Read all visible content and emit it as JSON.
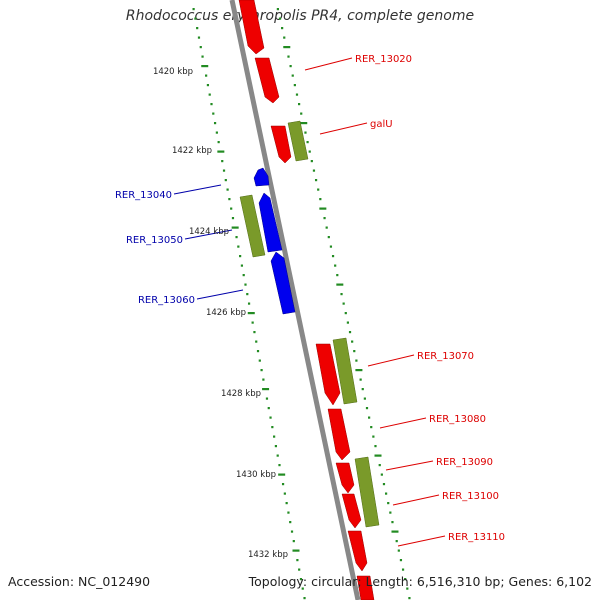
{
  "title": "Rhodococcus erythropolis PR4, complete genome",
  "footer": {
    "accession": "Accession: NC_012490",
    "summary": "Topology: circular; Length: 6,516,310 bp; Genes: 6,102"
  },
  "colors": {
    "forward_cds": "#ff0000",
    "reverse_cds": "#0000ff",
    "rna_or_other": "#6b8e23",
    "backbone": "#888888",
    "tick": "#228b22"
  },
  "scale_labels": [
    "1420 kbp",
    "1422 kbp",
    "1424 kbp",
    "1426 kbp",
    "1428 kbp",
    "1430 kbp",
    "1432 kbp"
  ],
  "gene_labels": {
    "right": [
      "RER_13020",
      "galU",
      "RER_13070",
      "RER_13080",
      "RER_13090",
      "RER_13100",
      "RER_13110"
    ],
    "left": [
      "RER_13040",
      "RER_13050",
      "RER_13060"
    ]
  }
}
